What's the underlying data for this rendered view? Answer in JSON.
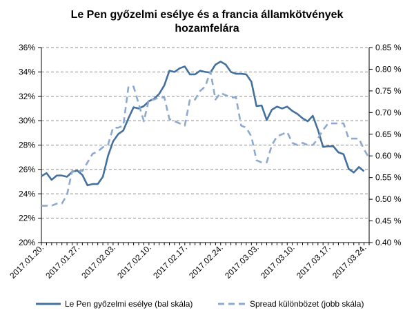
{
  "chart_data": {
    "type": "line",
    "title_lines": [
      "Le Pen győzelmi esélye és a francia államkötvények",
      "hozamfelára"
    ],
    "x": [
      "2017.01.20.",
      "2017.01.21.",
      "2017.01.22.",
      "2017.01.23.",
      "2017.01.24.",
      "2017.01.25.",
      "2017.01.26.",
      "2017.01.27.",
      "2017.01.28.",
      "2017.01.29.",
      "2017.01.30.",
      "2017.01.31.",
      "2017.02.01.",
      "2017.02.02.",
      "2017.02.03.",
      "2017.02.04.",
      "2017.02.05.",
      "2017.02.06.",
      "2017.02.07.",
      "2017.02.08.",
      "2017.02.09.",
      "2017.02.10.",
      "2017.02.11.",
      "2017.02.12.",
      "2017.02.13.",
      "2017.02.14.",
      "2017.02.15.",
      "2017.02.16.",
      "2017.02.17.",
      "2017.02.18.",
      "2017.02.19.",
      "2017.02.20.",
      "2017.02.21.",
      "2017.02.22.",
      "2017.02.23.",
      "2017.02.24.",
      "2017.02.25.",
      "2017.02.26.",
      "2017.02.27.",
      "2017.02.28.",
      "2017.03.01.",
      "2017.03.02.",
      "2017.03.03.",
      "2017.03.04.",
      "2017.03.05.",
      "2017.03.06.",
      "2017.03.07.",
      "2017.03.08.",
      "2017.03.09.",
      "2017.03.10.",
      "2017.03.11.",
      "2017.03.12.",
      "2017.03.13.",
      "2017.03.14.",
      "2017.03.15.",
      "2017.03.16.",
      "2017.03.17.",
      "2017.03.18.",
      "2017.03.19.",
      "2017.03.20.",
      "2017.03.21.",
      "2017.03.22.",
      "2017.03.23.",
      "2017.03.24.",
      "2017.03.25."
    ],
    "x_tick_labels": [
      "2017.01.20.",
      "2017.01.27.",
      "2017.02.03.",
      "2017.02.10.",
      "2017.02.17.",
      "2017.02.24.",
      "2017.03.03.",
      "2017.03.10.",
      "2017.03.17.",
      "2017.03.24."
    ],
    "y_left": {
      "ylim": [
        20,
        36
      ],
      "ticks": [
        20,
        22,
        24,
        26,
        28,
        30,
        32,
        34,
        36
      ],
      "tick_labels": [
        "20%",
        "22%",
        "24%",
        "26%",
        "28%",
        "30%",
        "32%",
        "34%",
        "36%"
      ]
    },
    "y_right": {
      "ylim": [
        0.4,
        0.85
      ],
      "ticks": [
        0.4,
        0.45,
        0.5,
        0.55,
        0.6,
        0.65,
        0.7,
        0.75,
        0.8,
        0.85
      ],
      "tick_labels": [
        "0.40 %",
        "0.45 %",
        "0.50 %",
        "0.55 %",
        "0.60 %",
        "0.65 %",
        "0.70 %",
        "0.75 %",
        "0.80 %",
        "0.85 %"
      ]
    },
    "grid": true,
    "legend_position": "bottom",
    "series": [
      {
        "name": "Le Pen győzelmi esélye (bal skála)",
        "axis": "left",
        "style": "solid",
        "color": "#44709e",
        "values": [
          25.45,
          25.7,
          25.15,
          25.5,
          25.5,
          25.4,
          25.8,
          25.9,
          25.55,
          24.7,
          24.8,
          24.8,
          25.4,
          27.1,
          28.3,
          28.9,
          29.2,
          30.2,
          31.1,
          31.0,
          31.2,
          31.6,
          31.8,
          32.2,
          32.9,
          34.1,
          34.0,
          34.3,
          34.45,
          33.8,
          33.8,
          34.1,
          34.0,
          33.95,
          34.6,
          34.85,
          34.6,
          34.0,
          33.85,
          33.85,
          33.8,
          33.2,
          31.2,
          31.25,
          30.05,
          30.9,
          31.15,
          31.0,
          31.15,
          30.8,
          30.55,
          30.2,
          29.95,
          30.4,
          29.25,
          27.85,
          27.9,
          27.9,
          27.4,
          27.25,
          26.05,
          25.75,
          26.2,
          25.85,
          null
        ]
      },
      {
        "name": "Spread különbözet (jobb skála)",
        "axis": "right",
        "style": "dashed",
        "color": "#8ea9cf",
        "values": [
          0.485,
          0.485,
          0.485,
          0.49,
          0.49,
          0.51,
          0.565,
          0.565,
          0.565,
          0.585,
          0.605,
          0.61,
          0.62,
          0.625,
          0.665,
          0.665,
          0.67,
          0.76,
          0.76,
          0.72,
          0.68,
          0.73,
          0.73,
          0.735,
          0.735,
          0.685,
          0.68,
          0.675,
          0.67,
          0.73,
          0.73,
          0.75,
          0.76,
          0.795,
          0.73,
          0.745,
          0.74,
          0.735,
          0.735,
          0.67,
          0.665,
          0.645,
          0.59,
          0.585,
          0.585,
          0.625,
          0.645,
          0.65,
          0.655,
          0.63,
          0.625,
          0.63,
          0.625,
          0.625,
          0.64,
          0.66,
          0.675,
          0.675,
          0.675,
          0.675,
          0.64,
          0.64,
          0.64,
          0.615,
          0.595
        ]
      }
    ]
  }
}
